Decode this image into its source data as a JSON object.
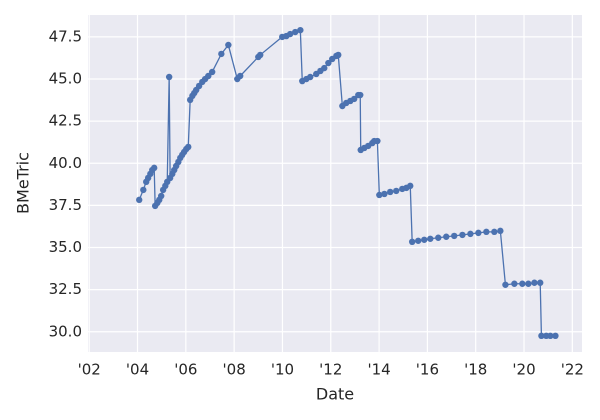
{
  "chart_data": {
    "type": "line",
    "x_label": "Date",
    "y_label": "BMeTric",
    "color": "#4c72b0",
    "grid": true,
    "x": [
      2004.07,
      2004.24,
      2004.36,
      2004.44,
      2004.53,
      2004.61,
      2004.69,
      2004.73,
      2004.82,
      2004.9,
      2004.98,
      2005.06,
      2005.15,
      2005.23,
      2005.31,
      2005.35,
      2005.44,
      2005.52,
      2005.6,
      2005.69,
      2005.77,
      2005.85,
      2005.93,
      2006.02,
      2006.1,
      2006.18,
      2006.27,
      2006.35,
      2006.43,
      2006.55,
      2006.68,
      2006.8,
      2006.93,
      2007.09,
      2007.47,
      2007.76,
      2008.13,
      2008.25,
      2009.0,
      2009.08,
      2009.99,
      2010.16,
      2010.32,
      2010.53,
      2010.74,
      2010.82,
      2010.99,
      2011.15,
      2011.4,
      2011.57,
      2011.73,
      2011.9,
      2012.06,
      2012.23,
      2012.31,
      2012.48,
      2012.64,
      2012.81,
      2012.97,
      2013.14,
      2013.22,
      2013.24,
      2013.39,
      2013.55,
      2013.72,
      2013.8,
      2013.93,
      2014.01,
      2014.22,
      2014.46,
      2014.71,
      2014.96,
      2015.13,
      2015.29,
      2015.37,
      2015.62,
      2015.87,
      2016.12,
      2016.45,
      2016.78,
      2017.11,
      2017.45,
      2017.78,
      2018.11,
      2018.44,
      2018.77,
      2019.02,
      2019.23,
      2019.6,
      2019.93,
      2020.18,
      2020.43,
      2020.67,
      2020.72,
      2020.92,
      2021.09,
      2021.3
    ],
    "values": [
      37.83,
      38.42,
      38.9,
      39.13,
      39.37,
      39.6,
      39.73,
      37.47,
      37.65,
      37.83,
      38.06,
      38.42,
      38.66,
      38.9,
      45.12,
      39.13,
      39.37,
      39.6,
      39.84,
      40.08,
      40.32,
      40.5,
      40.67,
      40.85,
      40.97,
      43.76,
      44.0,
      44.17,
      44.35,
      44.59,
      44.83,
      45.0,
      45.18,
      45.42,
      46.49,
      47.02,
      45.0,
      45.18,
      46.31,
      46.43,
      47.5,
      47.55,
      47.67,
      47.79,
      47.9,
      44.88,
      45.0,
      45.12,
      45.3,
      45.48,
      45.65,
      45.95,
      46.19,
      46.37,
      46.43,
      43.4,
      43.58,
      43.7,
      43.82,
      44.05,
      44.05,
      40.79,
      40.91,
      41.03,
      41.2,
      41.32,
      41.32,
      38.12,
      38.18,
      38.3,
      38.36,
      38.48,
      38.54,
      38.66,
      35.34,
      35.4,
      35.46,
      35.52,
      35.58,
      35.64,
      35.69,
      35.75,
      35.81,
      35.87,
      35.93,
      35.93,
      35.99,
      32.79,
      32.85,
      32.85,
      32.85,
      32.91,
      32.91,
      29.76,
      29.76,
      29.76,
      29.76
    ],
    "xlim": [
      2001.95,
      2022.4
    ],
    "xticks": [
      {
        "value": 2002,
        "label": "'02"
      },
      {
        "value": 2004,
        "label": "'04"
      },
      {
        "value": 2006,
        "label": "'06"
      },
      {
        "value": 2008,
        "label": "'08"
      },
      {
        "value": 2010,
        "label": "'10"
      },
      {
        "value": 2012,
        "label": "'12"
      },
      {
        "value": 2014,
        "label": "'14"
      },
      {
        "value": 2016,
        "label": "'16"
      },
      {
        "value": 2018,
        "label": "'18"
      },
      {
        "value": 2020,
        "label": "'20"
      },
      {
        "value": 2022,
        "label": "'22"
      }
    ],
    "ylim": [
      28.8,
      48.8
    ],
    "yticks": [
      {
        "value": 30,
        "label": "30.0"
      },
      {
        "value": 32.5,
        "label": "32.5"
      },
      {
        "value": 35,
        "label": "35.0"
      },
      {
        "value": 37.5,
        "label": "37.5"
      },
      {
        "value": 40,
        "label": "40.0"
      },
      {
        "value": 42.5,
        "label": "42.5"
      },
      {
        "value": 45,
        "label": "45.0"
      },
      {
        "value": 47.5,
        "label": "47.5"
      }
    ]
  }
}
